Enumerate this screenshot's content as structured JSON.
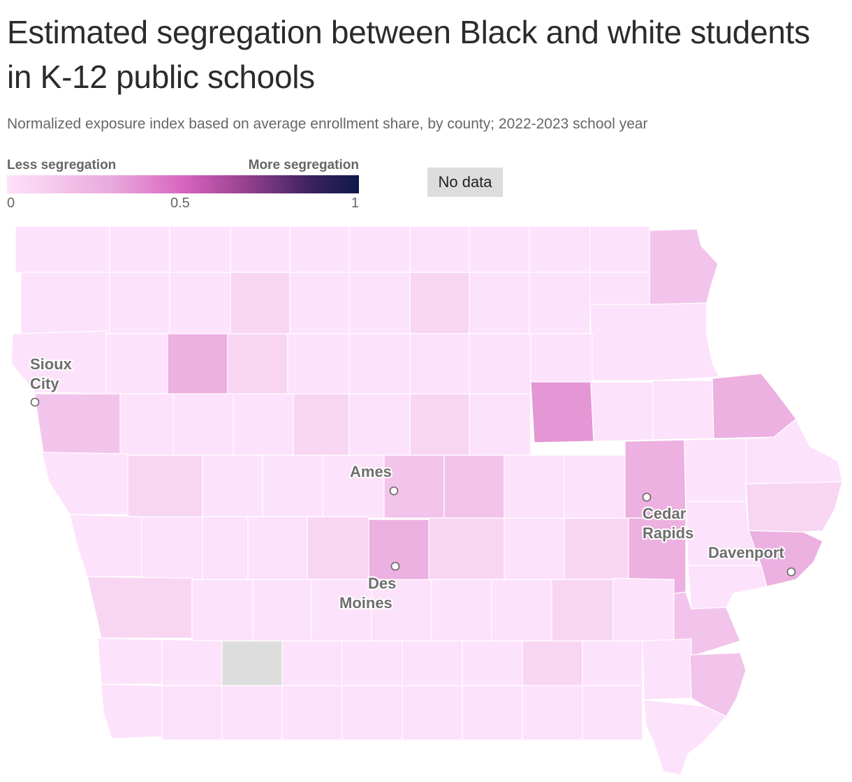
{
  "title": "Estimated segregation between Black and white students in K-12 public schools",
  "subtitle": "Normalized exposure index based on average enrollment share, by county; 2022-2023 school year",
  "legend": {
    "low_label": "Less segregation",
    "high_label": "More segregation",
    "ticks": [
      "0",
      "0.5",
      "1"
    ],
    "no_data_label": "No data",
    "colors": [
      "#fde2fb",
      "#e9a9dc",
      "#d865bf",
      "#8d3d8a",
      "#3c2261",
      "#0e1a4a"
    ],
    "no_data_color": "#dddddd"
  },
  "map_fill_levels": {
    "lightest": "#fde2fb",
    "light": "#f8d6f2",
    "medium_light": "#f3c4eb",
    "medium": "#ecb0e1",
    "medium_dark": "#e497d4"
  },
  "cities": [
    {
      "name_line1": "Sioux",
      "name_line2": "City"
    },
    {
      "name_line1": "Ames",
      "name_line2": ""
    },
    {
      "name_line1": "Des",
      "name_line2": "Moines"
    },
    {
      "name_line1": "Cedar",
      "name_line2": "Rapids"
    },
    {
      "name_line1": "Davenport",
      "name_line2": ""
    }
  ]
}
